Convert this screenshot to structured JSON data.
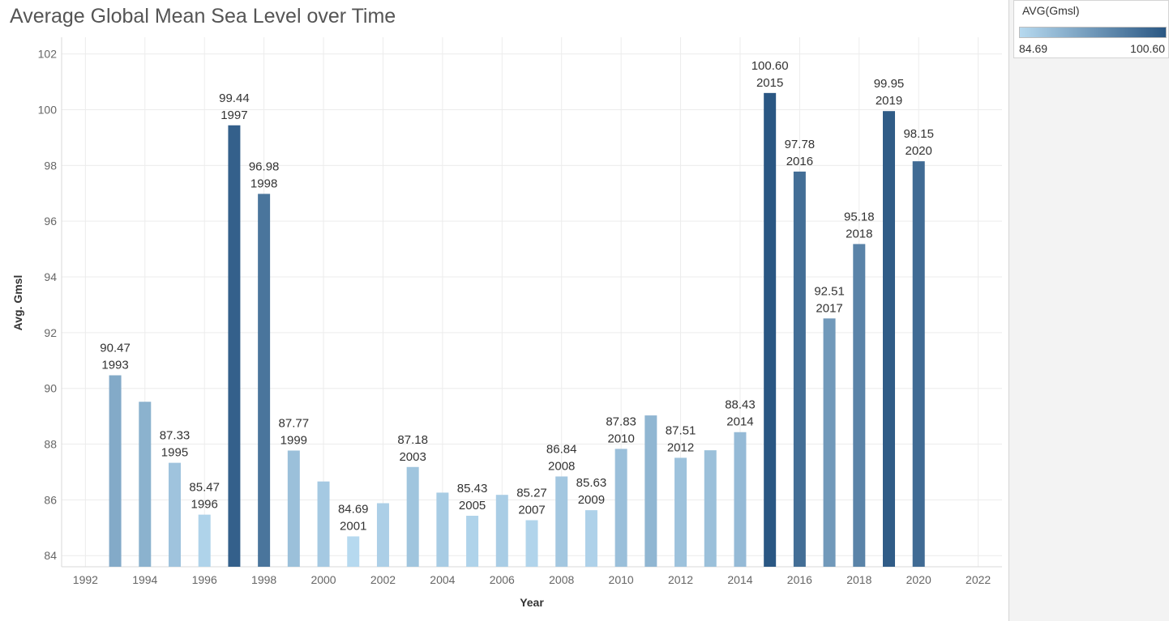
{
  "title": "Average Global Mean Sea Level over Time",
  "legend": {
    "title": "AVG(Gmsl)",
    "min_label": "84.69",
    "max_label": "100.60",
    "color_low": "#b6d9ef",
    "color_high": "#2a5783"
  },
  "chart_data": {
    "type": "bar",
    "title": "Average Global Mean Sea Level over Time",
    "xlabel": "Year",
    "ylabel": "Avg. Gmsl",
    "xlim": [
      1991.2,
      2022.8
    ],
    "ylim": [
      83.6,
      102.6
    ],
    "x_ticks": [
      1992,
      1994,
      1996,
      1998,
      2000,
      2002,
      2004,
      2006,
      2008,
      2010,
      2012,
      2014,
      2016,
      2018,
      2020,
      2022
    ],
    "y_ticks": [
      84,
      86,
      88,
      90,
      92,
      94,
      96,
      98,
      100,
      102
    ],
    "grid": true,
    "legend_position": "top-right",
    "color_encoding": "sequential blue by AVG(Gmsl)",
    "x": [
      1993,
      1994,
      1995,
      1996,
      1997,
      1998,
      1999,
      2000,
      2001,
      2002,
      2003,
      2004,
      2005,
      2006,
      2007,
      2008,
      2009,
      2010,
      2011,
      2012,
      2013,
      2014,
      2015,
      2016,
      2017,
      2018,
      2019,
      2020
    ],
    "values": [
      90.47,
      89.52,
      87.33,
      85.47,
      99.44,
      96.98,
      87.77,
      86.66,
      84.69,
      85.88,
      87.18,
      86.26,
      85.43,
      86.18,
      85.27,
      86.84,
      85.63,
      87.83,
      89.03,
      87.51,
      87.78,
      88.43,
      100.6,
      97.78,
      92.51,
      95.18,
      99.95,
      98.15
    ],
    "labeled": [
      true,
      false,
      true,
      true,
      true,
      true,
      true,
      false,
      true,
      false,
      true,
      false,
      true,
      false,
      true,
      true,
      true,
      true,
      false,
      true,
      false,
      true,
      true,
      true,
      true,
      true,
      true,
      true
    ]
  }
}
